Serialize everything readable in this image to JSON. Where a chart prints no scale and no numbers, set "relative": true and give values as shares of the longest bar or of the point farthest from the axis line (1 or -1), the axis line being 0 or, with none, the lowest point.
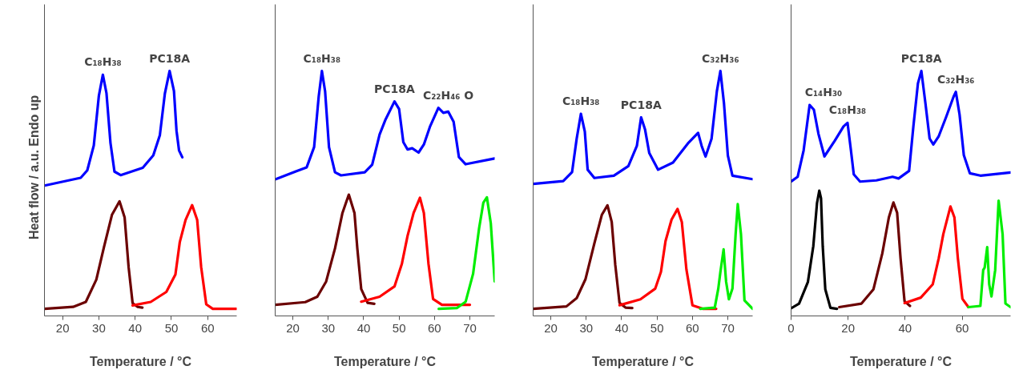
{
  "chart_data": [
    {
      "type": "line",
      "relative": true,
      "xlabel": "Temperature / °C",
      "ylabel": "Heat flow / a.u.     Endo up",
      "xlim": [
        15,
        68
      ],
      "xticks": [
        20,
        30,
        40,
        50,
        60
      ],
      "tick_labels": "x",
      "grid": false,
      "marker": "none",
      "line_style": "solid",
      "annotations": [
        {
          "text": "C₁₈H₃₈",
          "x": 31.1,
          "y": 0.984
        },
        {
          "text": "PC18A",
          "x": 49.5,
          "y": 1.0
        }
      ],
      "series": [
        {
          "color": "#0000ff",
          "x": [
            15,
            25,
            26.8,
            28.6,
            30,
            31.1,
            32.1,
            33.2,
            34.3,
            36,
            42.1,
            45,
            46.8,
            48.2,
            49.5,
            50.7,
            51.4,
            52.1,
            53
          ],
          "values": [
            0.518,
            0.551,
            0.582,
            0.687,
            0.896,
            0.984,
            0.906,
            0.697,
            0.577,
            0.562,
            0.593,
            0.645,
            0.729,
            0.906,
            1.0,
            0.916,
            0.749,
            0.666,
            0.637
          ]
        },
        {
          "color": "#6b0000",
          "x": [
            15,
            22.9,
            26.4,
            29.3,
            31.4,
            33.6,
            35.7,
            37.1,
            38.2,
            39.3,
            40.7,
            42
          ],
          "values": [
            0,
            0.008,
            0.029,
            0.123,
            0.259,
            0.395,
            0.452,
            0.384,
            0.175,
            0.024,
            0.008,
            0.005
          ]
        },
        {
          "color": "#ff0000",
          "x": [
            39.3,
            44.3,
            48.6,
            51.1,
            52.3,
            53.9,
            55.7,
            57.1,
            58.2,
            59.6,
            61.4,
            67.9
          ],
          "values": [
            0.014,
            0.029,
            0.071,
            0.144,
            0.28,
            0.374,
            0.436,
            0.374,
            0.175,
            0.019,
            0,
            0
          ]
        }
      ]
    },
    {
      "type": "line",
      "relative": true,
      "xlabel": "Temperature / °C",
      "xlim": [
        15,
        77
      ],
      "xticks": [
        20,
        30,
        40,
        50,
        60,
        70
      ],
      "tick_labels": "x",
      "grid": false,
      "marker": "none",
      "line_style": "solid",
      "annotations": [
        {
          "text": "C₁₈H₃₈",
          "x": 28.2,
          "y": 1.0
        },
        {
          "text": "PC18A",
          "x": 48.7,
          "y": 0.872
        },
        {
          "text": "C₂₂H₄₆ O",
          "x": 63.9,
          "y": 0.845
        }
      ],
      "series": [
        {
          "color": "#0000ff",
          "x": [
            15,
            21,
            23.9,
            26,
            27.3,
            28.2,
            29.1,
            30.2,
            31.9,
            33.6,
            40.3,
            42.4,
            44.5,
            46.2,
            48.7,
            50,
            51.2,
            52.4,
            53.7,
            55.5,
            57,
            58.7,
            61.1,
            62.5,
            63.9,
            65.4,
            66.9,
            68.8,
            77
          ],
          "values": [
            0.544,
            0.579,
            0.595,
            0.68,
            0.893,
            1.0,
            0.915,
            0.68,
            0.574,
            0.561,
            0.574,
            0.606,
            0.733,
            0.797,
            0.872,
            0.84,
            0.701,
            0.67,
            0.675,
            0.657,
            0.691,
            0.765,
            0.845,
            0.824,
            0.829,
            0.787,
            0.638,
            0.608,
            0.632
          ]
        },
        {
          "color": "#6b0000",
          "x": [
            15,
            23.5,
            26.9,
            29.4,
            31.9,
            34,
            35.8,
            37.4,
            38.2,
            39.3,
            41.1,
            43
          ],
          "values": [
            0.017,
            0.028,
            0.051,
            0.115,
            0.254,
            0.403,
            0.48,
            0.403,
            0.254,
            0.083,
            0.025,
            0.021
          ]
        },
        {
          "color": "#ff0000",
          "x": [
            39.3,
            44.5,
            48.7,
            50.8,
            52.4,
            54.1,
            55.9,
            57,
            58.3,
            59.6,
            62.1,
            70
          ],
          "values": [
            0.03,
            0.051,
            0.094,
            0.19,
            0.307,
            0.403,
            0.467,
            0.403,
            0.19,
            0.041,
            0.017,
            0.017
          ]
        },
        {
          "color": "#00ee00",
          "x": [
            61.2,
            66.3,
            68.8,
            70.9,
            72.6,
            73.8,
            74.8,
            75.9,
            77
          ],
          "values": [
            0,
            0.003,
            0.03,
            0.147,
            0.339,
            0.446,
            0.469,
            0.36,
            0.115
          ]
        }
      ]
    },
    {
      "type": "line",
      "relative": true,
      "xlabel": "Temperature / °C",
      "xlim": [
        15,
        77
      ],
      "xticks": [
        20,
        30,
        40,
        50,
        60,
        70
      ],
      "tick_labels": "x",
      "grid": false,
      "marker": "none",
      "line_style": "solid",
      "annotations": [
        {
          "text": "C₁₈H₃₈",
          "x": 28.5,
          "y": 0.82
        },
        {
          "text": "PC18A",
          "x": 45.5,
          "y": 0.805
        },
        {
          "text": "C₃₂H₃₆",
          "x": 67.9,
          "y": 1.0
        }
      ],
      "series": [
        {
          "color": "#0000ff",
          "x": [
            15,
            23.5,
            26,
            27.3,
            28.5,
            29.6,
            30.4,
            32.3,
            37.8,
            41.9,
            44.3,
            45.5,
            46.6,
            47.8,
            50.3,
            54.5,
            58.7,
            61.6,
            62.6,
            63.7,
            65.4,
            66.9,
            67.9,
            68.9,
            70,
            71.3,
            77
          ],
          "values": [
            0.525,
            0.537,
            0.575,
            0.715,
            0.82,
            0.745,
            0.585,
            0.55,
            0.56,
            0.6,
            0.685,
            0.805,
            0.755,
            0.655,
            0.585,
            0.615,
            0.695,
            0.74,
            0.685,
            0.64,
            0.715,
            0.915,
            1.0,
            0.865,
            0.645,
            0.56,
            0.545
          ]
        },
        {
          "color": "#6b0000",
          "x": [
            15,
            24.4,
            27.3,
            29.8,
            32.3,
            34.4,
            36,
            37.2,
            38.2,
            39.4,
            41.1,
            43
          ],
          "values": [
            0,
            0.01,
            0.045,
            0.125,
            0.275,
            0.395,
            0.435,
            0.365,
            0.185,
            0.025,
            0.005,
            0.003
          ]
        },
        {
          "color": "#ff0000",
          "x": [
            39.4,
            45.3,
            49.5,
            51.1,
            52.4,
            54.1,
            55.8,
            57,
            58.3,
            60,
            62.9,
            66.7
          ],
          "values": [
            0.015,
            0.04,
            0.085,
            0.155,
            0.285,
            0.375,
            0.42,
            0.365,
            0.165,
            0.015,
            0,
            0
          ]
        },
        {
          "color": "#00ee00",
          "x": [
            62.2,
            66.3,
            67.3,
            67.9,
            68.8,
            69.5,
            70.3,
            71.3,
            72.2,
            72.8,
            73.7,
            74.7,
            77
          ],
          "values": [
            0,
            0.005,
            0.085,
            0.155,
            0.25,
            0.115,
            0.04,
            0.085,
            0.315,
            0.44,
            0.315,
            0.035,
            0
          ]
        }
      ]
    },
    {
      "type": "line",
      "relative": true,
      "xlabel": "Temperature / °C",
      "xlim": [
        0,
        77
      ],
      "xticks": [
        0,
        20,
        40,
        60
      ],
      "tick_labels": "x",
      "grid": false,
      "marker": "none",
      "line_style": "solid",
      "annotations": [
        {
          "text": "C₁₄H₃₀",
          "x": 6.5,
          "y": 0.857
        },
        {
          "text": "C₁₈H₃₈",
          "x": 19.8,
          "y": 0.782
        },
        {
          "text": "PC18A",
          "x": 45.7,
          "y": 1.0
        },
        {
          "text": "C₃₂H₃₆",
          "x": 57.8,
          "y": 0.912
        }
      ],
      "series": [
        {
          "color": "#0000ff",
          "x": [
            0,
            2.3,
            4.4,
            6.5,
            8,
            9.6,
            11.7,
            15.3,
            18.4,
            19.8,
            21,
            22,
            24.2,
            29.9,
            35.6,
            37.7,
            41.4,
            42.9,
            44.5,
            45.7,
            47.1,
            48.6,
            49.9,
            51.8,
            54.4,
            57,
            57.8,
            59.1,
            60.6,
            62.7,
            66.4,
            77
          ],
          "values": [
            0.535,
            0.555,
            0.666,
            0.857,
            0.837,
            0.736,
            0.641,
            0.706,
            0.767,
            0.782,
            0.666,
            0.565,
            0.535,
            0.54,
            0.555,
            0.548,
            0.58,
            0.767,
            0.948,
            1.0,
            0.867,
            0.716,
            0.691,
            0.726,
            0.807,
            0.892,
            0.912,
            0.817,
            0.646,
            0.57,
            0.56,
            0.573
          ]
        },
        {
          "color": "#000000",
          "x": [
            0,
            2.8,
            5.9,
            7.8,
            9.1,
            9.9,
            10.5,
            11.1,
            12,
            13.8,
            16.1
          ],
          "values": [
            0.002,
            0.022,
            0.113,
            0.264,
            0.445,
            0.497,
            0.465,
            0.264,
            0.082,
            0.004,
            0
          ]
        },
        {
          "color": "#6b0000",
          "x": [
            16.9,
            24.7,
            28.9,
            32,
            34.3,
            35.9,
            37.2,
            38.4,
            39.8,
            41.7
          ],
          "values": [
            0.007,
            0.022,
            0.082,
            0.233,
            0.384,
            0.447,
            0.404,
            0.213,
            0.032,
            0.012
          ]
        },
        {
          "color": "#ff0000",
          "x": [
            39.8,
            45.5,
            49.7,
            51.8,
            53.4,
            55.9,
            57.3,
            58.5,
            60.1,
            62.2
          ],
          "values": [
            0.024,
            0.047,
            0.103,
            0.213,
            0.314,
            0.43,
            0.384,
            0.213,
            0.042,
            0.007
          ]
        },
        {
          "color": "#00ee00",
          "x": [
            62.2,
            66.4,
            67.4,
            67.9,
            68.8,
            69.5,
            70.3,
            71.6,
            72.8,
            74.2,
            75.2,
            77
          ],
          "values": [
            0.007,
            0.012,
            0.163,
            0.173,
            0.259,
            0.103,
            0.052,
            0.163,
            0.455,
            0.314,
            0.022,
            0.007
          ]
        }
      ]
    }
  ]
}
